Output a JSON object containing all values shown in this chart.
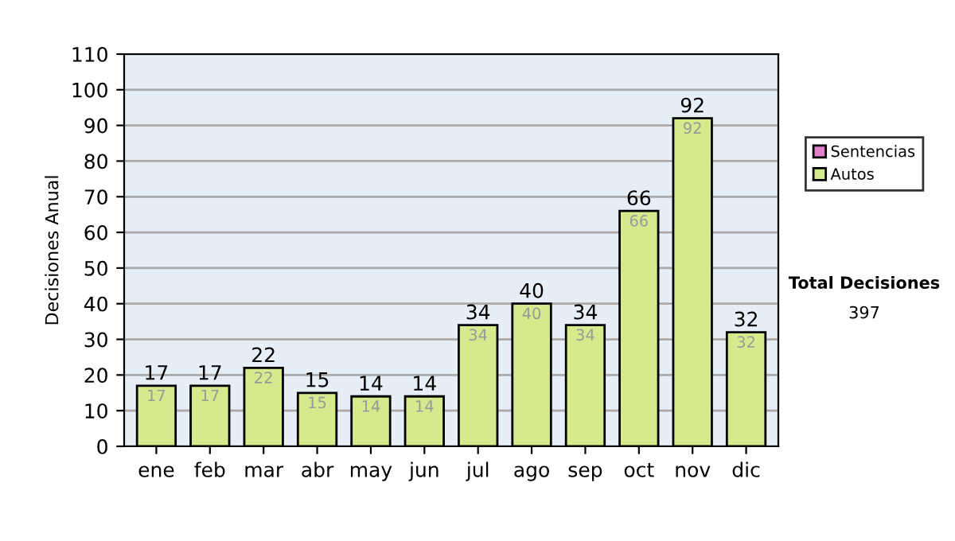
{
  "chart_data": {
    "type": "bar",
    "stacked": true,
    "ylabel": "Decisiones Anual",
    "categories": [
      "ene",
      "feb",
      "mar",
      "abr",
      "may",
      "jun",
      "jul",
      "ago",
      "sep",
      "oct",
      "nov",
      "dic"
    ],
    "series": [
      {
        "name": "Sentencias",
        "color": "#e080c8",
        "values": [
          0,
          0,
          0,
          0,
          0,
          0,
          0,
          0,
          0,
          0,
          0,
          0
        ]
      },
      {
        "name": "Autos",
        "color": "#d4ea8c",
        "values": [
          17,
          17,
          22,
          15,
          14,
          14,
          34,
          40,
          34,
          66,
          92,
          32
        ],
        "value_labels": [
          "17",
          "17",
          "22",
          "15",
          "14",
          "14",
          "34",
          "40",
          "34",
          "66",
          "92",
          "32"
        ]
      }
    ],
    "totals": [
      "17",
      "17",
      "22",
      "15",
      "14",
      "14",
      "34",
      "40",
      "34",
      "66",
      "92",
      "32"
    ],
    "ylim": [
      0,
      110
    ],
    "yticks": [
      0,
      10,
      20,
      30,
      40,
      50,
      60,
      70,
      80,
      90,
      100,
      110
    ],
    "grid": "y",
    "legend": "right",
    "annotations": [
      "Total Decisiones",
      "397"
    ]
  }
}
